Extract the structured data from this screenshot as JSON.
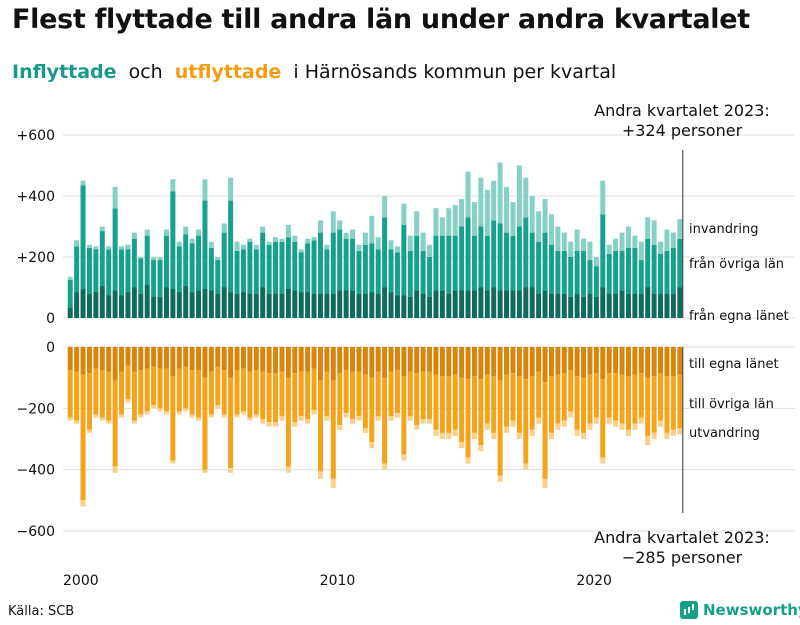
{
  "title": "Flest flyttade till andra län under andra kvartalet",
  "subtitle": {
    "inflow": "Inflyttade",
    "conj": "och",
    "outflow": "utflyttade",
    "rest": "i Härnösands kommun per kvartal"
  },
  "source": "Källa: SCB",
  "brand": "Newsworthy",
  "colors": {
    "in_local": "#0e6b5e",
    "in_other": "#17a08e",
    "in_foreign": "#86d0c6",
    "out_local": "#d9850b",
    "out_other": "#f4a31b",
    "out_foreign": "#fbd08a",
    "text": "#111111",
    "grid": "#dddddd"
  },
  "chart_data": {
    "type": "bar",
    "stacked": true,
    "x_start": "2000 Q1",
    "x_end": "2023 Q2",
    "x_ticks": [
      "2000",
      "2010",
      "2020"
    ],
    "y_ticks_in": [
      "+600",
      "+400",
      "+200",
      "0"
    ],
    "y_ticks_out": [
      "0",
      "−200",
      "−400",
      "−600"
    ],
    "ylim_in": [
      0,
      600
    ],
    "ylim_out": [
      -600,
      0
    ],
    "series_labels_in": [
      "invandring",
      "från övriga län",
      "från egna länet"
    ],
    "series_labels_out": [
      "till egna länet",
      "till övriga län",
      "utvandring"
    ],
    "annotation_top": [
      "Andra kvartalet 2023:",
      "+324 personer"
    ],
    "annotation_bottom": [
      "Andra kvartalet 2023:",
      "−285 personer"
    ],
    "inflow_totals": [
      135,
      255,
      450,
      240,
      235,
      300,
      235,
      430,
      235,
      240,
      280,
      200,
      290,
      200,
      200,
      290,
      455,
      250,
      300,
      260,
      290,
      455,
      250,
      200,
      310,
      460,
      250,
      240,
      260,
      240,
      300,
      250,
      265,
      260,
      305,
      270,
      225,
      260,
      265,
      320,
      240,
      350,
      320,
      280,
      290,
      240,
      280,
      335,
      265,
      400,
      255,
      235,
      375,
      270,
      350,
      280,
      240,
      360,
      330,
      360,
      370,
      390,
      480,
      380,
      460,
      420,
      450,
      510,
      430,
      380,
      500,
      460,
      400,
      350,
      390,
      340,
      300,
      280,
      250,
      290,
      260,
      250,
      200,
      450,
      240,
      260,
      280,
      300,
      270,
      250,
      330,
      320,
      250,
      290,
      280,
      324
    ],
    "inflow_foreign": [
      10,
      20,
      15,
      10,
      10,
      15,
      10,
      70,
      10,
      15,
      20,
      5,
      20,
      10,
      10,
      20,
      40,
      15,
      25,
      15,
      20,
      70,
      20,
      10,
      30,
      75,
      30,
      15,
      10,
      15,
      20,
      10,
      15,
      10,
      40,
      20,
      10,
      15,
      10,
      40,
      15,
      70,
      30,
      20,
      30,
      20,
      40,
      90,
      40,
      70,
      30,
      20,
      70,
      50,
      80,
      60,
      40,
      90,
      60,
      90,
      100,
      90,
      150,
      110,
      160,
      150,
      130,
      200,
      150,
      110,
      200,
      130,
      120,
      100,
      110,
      100,
      80,
      60,
      50,
      70,
      40,
      60,
      30,
      110,
      30,
      40,
      60,
      70,
      40,
      60,
      70,
      80,
      40,
      70,
      50,
      65
    ],
    "inflow_other": [
      90,
      150,
      340,
      150,
      140,
      180,
      150,
      270,
      150,
      140,
      160,
      115,
      160,
      120,
      120,
      170,
      320,
      150,
      170,
      160,
      180,
      290,
      140,
      110,
      180,
      300,
      140,
      140,
      170,
      145,
      180,
      160,
      170,
      170,
      170,
      160,
      130,
      160,
      175,
      200,
      145,
      200,
      200,
      170,
      170,
      140,
      160,
      160,
      145,
      230,
      140,
      140,
      230,
      150,
      180,
      140,
      130,
      180,
      180,
      190,
      180,
      210,
      240,
      180,
      200,
      180,
      220,
      220,
      190,
      180,
      210,
      230,
      180,
      170,
      190,
      160,
      140,
      140,
      130,
      140,
      150,
      110,
      100,
      240,
      130,
      140,
      130,
      150,
      150,
      110,
      160,
      160,
      130,
      140,
      150,
      159
    ],
    "outflow_totals": [
      240,
      250,
      520,
      280,
      230,
      240,
      250,
      410,
      230,
      180,
      250,
      230,
      220,
      200,
      210,
      220,
      380,
      220,
      210,
      230,
      240,
      410,
      230,
      200,
      230,
      410,
      230,
      220,
      240,
      230,
      250,
      260,
      260,
      240,
      410,
      260,
      240,
      250,
      220,
      430,
      240,
      460,
      270,
      230,
      250,
      240,
      280,
      330,
      240,
      400,
      240,
      230,
      370,
      240,
      270,
      250,
      250,
      290,
      300,
      300,
      290,
      330,
      380,
      300,
      340,
      270,
      300,
      440,
      280,
      260,
      300,
      400,
      290,
      250,
      460,
      300,
      270,
      260,
      230,
      290,
      300,
      270,
      250,
      380,
      250,
      260,
      270,
      290,
      270,
      250,
      320,
      300,
      260,
      300,
      290,
      285
    ],
    "outflow_foreign": [
      10,
      10,
      20,
      10,
      10,
      10,
      10,
      20,
      10,
      10,
      10,
      10,
      10,
      10,
      10,
      10,
      10,
      10,
      10,
      10,
      10,
      10,
      10,
      10,
      10,
      15,
      10,
      10,
      10,
      10,
      15,
      15,
      15,
      15,
      20,
      15,
      15,
      15,
      15,
      25,
      15,
      30,
      15,
      15,
      15,
      15,
      15,
      20,
      15,
      20,
      15,
      15,
      20,
      15,
      15,
      15,
      15,
      20,
      20,
      20,
      20,
      20,
      20,
      20,
      20,
      20,
      20,
      20,
      20,
      20,
      20,
      20,
      20,
      20,
      30,
      20,
      20,
      20,
      20,
      20,
      20,
      20,
      20,
      20,
      20,
      20,
      20,
      20,
      20,
      20,
      30,
      20,
      20,
      20,
      20,
      20
    ],
    "outflow_local": [
      75,
      80,
      90,
      85,
      70,
      75,
      80,
      110,
      80,
      60,
      80,
      75,
      70,
      65,
      70,
      70,
      95,
      70,
      65,
      75,
      75,
      100,
      80,
      65,
      75,
      100,
      75,
      70,
      80,
      75,
      80,
      85,
      85,
      80,
      100,
      85,
      80,
      80,
      70,
      110,
      80,
      110,
      85,
      75,
      80,
      80,
      90,
      100,
      80,
      100,
      80,
      75,
      95,
      80,
      85,
      80,
      80,
      90,
      95,
      95,
      90,
      100,
      105,
      95,
      105,
      90,
      95,
      110,
      90,
      85,
      95,
      105,
      95,
      80,
      115,
      95,
      90,
      85,
      75,
      95,
      100,
      90,
      85,
      105,
      85,
      85,
      90,
      95,
      90,
      85,
      100,
      95,
      85,
      95,
      95,
      90
    ],
    "inflow_local": [
      40,
      70,
      80,
      70,
      80,
      90,
      70,
      80,
      70,
      80,
      90,
      70,
      90,
      60,
      60,
      90,
      80,
      80,
      90,
      80,
      80,
      80,
      80,
      70,
      90,
      80,
      70,
      75,
      70,
      70,
      90,
      70,
      70,
      70,
      80,
      80,
      75,
      75,
      70,
      70,
      70,
      70,
      80,
      80,
      80,
      70,
      70,
      75,
      70,
      90,
      75,
      65,
      75,
      70,
      80,
      70,
      70,
      80,
      80,
      80,
      80,
      80,
      80,
      80,
      90,
      80,
      90,
      80,
      80,
      80,
      80,
      90,
      90,
      70,
      80,
      80,
      70,
      70,
      60,
      70,
      70,
      70,
      60,
      90,
      70,
      70,
      80,
      70,
      70,
      70,
      90,
      70,
      70,
      70,
      70,
      100
    ]
  }
}
